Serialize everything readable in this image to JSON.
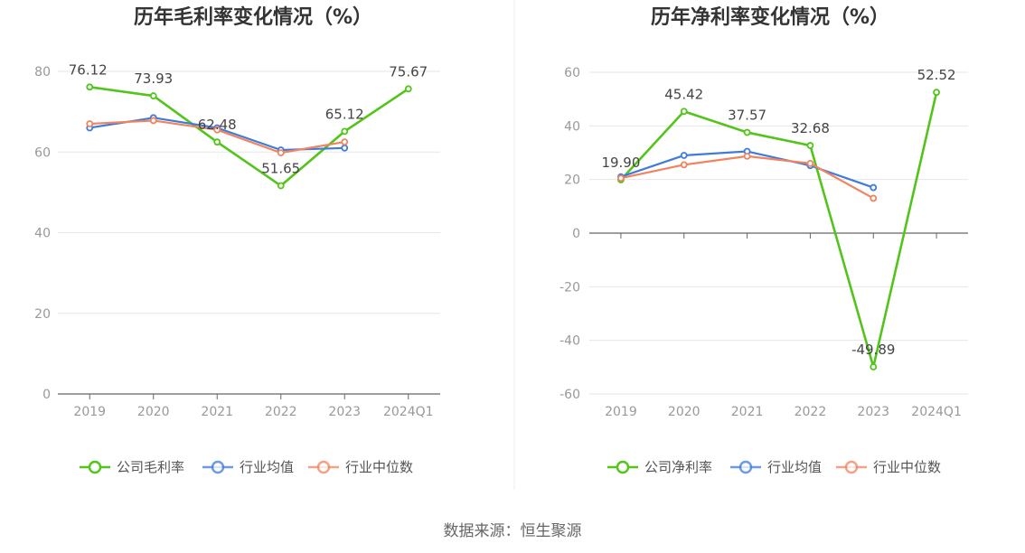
{
  "source_text": "数据来源：恒生聚源",
  "colors": {
    "company": "#52c41a",
    "industry_avg": "#3e7bdc",
    "industry_median": "#f0845f",
    "grid": "#e6e6e6",
    "axis": "#666666"
  },
  "chart_data": [
    {
      "type": "line",
      "title": "历年毛利率变化情况（%）",
      "categories": [
        "2019",
        "2020",
        "2021",
        "2022",
        "2023",
        "2024Q1"
      ],
      "ylim": [
        0,
        80
      ],
      "yticks": [
        0,
        20,
        40,
        60,
        80
      ],
      "ytick_labels": [
        "0",
        "20",
        "40",
        "60",
        "80"
      ],
      "xlabel": "",
      "ylabel": "",
      "series": [
        {
          "name": "公司毛利率",
          "key": "company",
          "values": [
            76.12,
            73.93,
            62.48,
            51.65,
            65.12,
            75.67
          ],
          "labels": [
            "76.12",
            "73.93",
            "62.48",
            "51.65",
            "65.12",
            "75.67"
          ]
        },
        {
          "name": "行业均值",
          "key": "industry_avg",
          "values": [
            66.0,
            68.5,
            66.0,
            60.5,
            61.0,
            null
          ]
        },
        {
          "name": "行业中位数",
          "key": "industry_median",
          "values": [
            67.0,
            67.8,
            65.5,
            59.8,
            62.5,
            null
          ]
        }
      ]
    },
    {
      "type": "line",
      "title": "历年净利率变化情况（%）",
      "categories": [
        "2019",
        "2020",
        "2021",
        "2022",
        "2023",
        "2024Q1"
      ],
      "ylim": [
        -60,
        60
      ],
      "yticks": [
        -60,
        -40,
        -20,
        0,
        20,
        40,
        60
      ],
      "ytick_labels": [
        "-60",
        "-40",
        "-20",
        "0",
        "20",
        "40",
        "60"
      ],
      "xlabel": "",
      "ylabel": "",
      "series": [
        {
          "name": "公司净利率",
          "key": "company",
          "values": [
            19.9,
            45.42,
            37.57,
            32.68,
            -49.89,
            52.52
          ],
          "labels": [
            "19.90",
            "45.42",
            "37.57",
            "32.68",
            "-49.89",
            "52.52"
          ]
        },
        {
          "name": "行业均值",
          "key": "industry_avg",
          "values": [
            21.0,
            29.0,
            30.5,
            25.2,
            17.0,
            null
          ]
        },
        {
          "name": "行业中位数",
          "key": "industry_median",
          "values": [
            20.5,
            25.5,
            28.7,
            26.0,
            13.0,
            null
          ]
        }
      ]
    }
  ]
}
